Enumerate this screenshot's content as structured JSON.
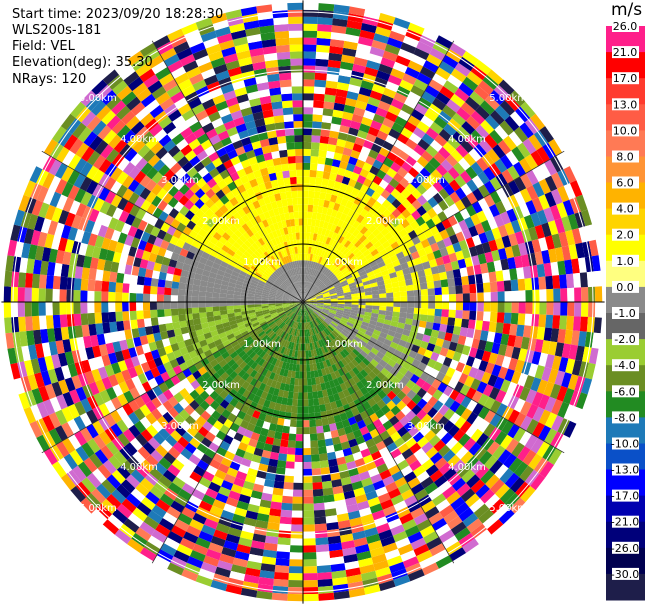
{
  "info": {
    "start_time": "Start time: 2023/09/20 18:28:30",
    "station": "WLS200s-181",
    "field": "Field: VEL",
    "elevation": "Elevation(deg): 35.30",
    "nrays": "NRays: 120"
  },
  "colorbar": {
    "unit": "m/s",
    "levels": [
      {
        "label": "26.0",
        "color": "#ff1f8a"
      },
      {
        "label": "21.0",
        "color": "#ff0000"
      },
      {
        "label": "17.0",
        "color": "#ff3b2e"
      },
      {
        "label": "13.0",
        "color": "#ff5c45"
      },
      {
        "label": "10.0",
        "color": "#ff7a55"
      },
      {
        "label": "8.0",
        "color": "#ff9435"
      },
      {
        "label": "6.0",
        "color": "#ffb300"
      },
      {
        "label": "4.0",
        "color": "#ffd400"
      },
      {
        "label": "2.0",
        "color": "#ffff00"
      },
      {
        "label": "1.0",
        "color": "#ffff80"
      },
      {
        "label": "0.0",
        "color": "#8a8a8a"
      },
      {
        "label": "-1.0",
        "color": "#666666"
      },
      {
        "label": "-2.0",
        "color": "#9acd32"
      },
      {
        "label": "-4.0",
        "color": "#6b8e23"
      },
      {
        "label": "-6.0",
        "color": "#228b22"
      },
      {
        "label": "-8.0",
        "color": "#1e7ab8"
      },
      {
        "label": "-10.0",
        "color": "#0a50c8"
      },
      {
        "label": "-13.0",
        "color": "#0000ff"
      },
      {
        "label": "-17.0",
        "color": "#0000b0"
      },
      {
        "label": "-21.0",
        "color": "#00007a"
      },
      {
        "label": "-26.0",
        "color": "#000050"
      },
      {
        "label": "-30.0",
        "color": "#1e1e4a"
      }
    ]
  },
  "chart_data": {
    "type": "heatmap",
    "projection": "polar PPI",
    "field": "VEL",
    "n_rays": 120,
    "elevation_deg": 35.3,
    "range_rings_km": [
      1.0,
      2.0,
      3.0,
      4.0,
      5.0
    ],
    "range_labels": [
      "1.00km",
      "2.00km",
      "3.00km",
      "4.00km",
      "5.00km"
    ],
    "spoke_angles_deg": [
      0,
      30,
      60,
      90,
      120,
      150,
      180,
      210,
      240,
      270,
      300,
      330
    ],
    "max_range_km": 5.2,
    "near_field": {
      "north_sector_ms": 2.0,
      "center_ms": 0.0,
      "south_sector_ms": -4.0,
      "clean_range_km": 2.4
    },
    "far_field": "noise (random velocities beyond ~2.4 km)"
  }
}
